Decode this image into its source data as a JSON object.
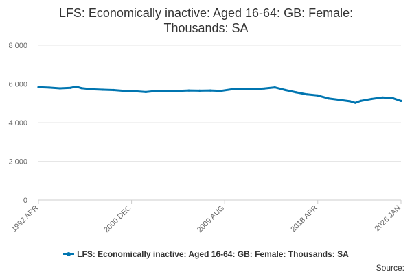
{
  "chart_data": {
    "type": "line",
    "title_lines": [
      "LFS: Economically inactive: Aged 16-64: GB: Female:",
      "Thousands: SA"
    ],
    "xlabel": "",
    "ylabel": "",
    "ylim": [
      0,
      8000
    ],
    "yticks": [
      0,
      2000,
      4000,
      6000,
      8000
    ],
    "ytick_labels": [
      "0",
      "2 000",
      "4 000",
      "6 000",
      "8 000"
    ],
    "xlim": [
      "1992 APR",
      "2026 JAN"
    ],
    "xticks": [
      "1992 APR",
      "2000 DEC",
      "2009 AUG",
      "2018 APR",
      "2026 JAN"
    ],
    "grid": "horizontal",
    "legend_position": "bottom",
    "series": [
      {
        "name": "LFS: Economically inactive: Aged 16-64: GB: Female: Thousands: SA",
        "color": "#0075b0",
        "points": [
          [
            "1992 APR",
            5830
          ],
          [
            "1993 APR",
            5810
          ],
          [
            "1994 APR",
            5770
          ],
          [
            "1995 APR",
            5800
          ],
          [
            "1995 OCT",
            5860
          ],
          [
            "1996 APR",
            5780
          ],
          [
            "1997 APR",
            5720
          ],
          [
            "1998 APR",
            5700
          ],
          [
            "1999 APR",
            5680
          ],
          [
            "2000 APR",
            5640
          ],
          [
            "2001 APR",
            5620
          ],
          [
            "2002 APR",
            5580
          ],
          [
            "2003 APR",
            5640
          ],
          [
            "2004 APR",
            5620
          ],
          [
            "2005 APR",
            5640
          ],
          [
            "2006 APR",
            5660
          ],
          [
            "2007 APR",
            5650
          ],
          [
            "2008 APR",
            5660
          ],
          [
            "2009 APR",
            5640
          ],
          [
            "2010 APR",
            5720
          ],
          [
            "2011 APR",
            5740
          ],
          [
            "2012 APR",
            5720
          ],
          [
            "2013 APR",
            5760
          ],
          [
            "2014 APR",
            5820
          ],
          [
            "2015 APR",
            5680
          ],
          [
            "2016 APR",
            5560
          ],
          [
            "2017 APR",
            5460
          ],
          [
            "2018 APR",
            5400
          ],
          [
            "2019 APR",
            5250
          ],
          [
            "2020 APR",
            5180
          ],
          [
            "2021 APR",
            5100
          ],
          [
            "2021 OCT",
            5020
          ],
          [
            "2022 APR",
            5120
          ],
          [
            "2023 APR",
            5220
          ],
          [
            "2024 APR",
            5300
          ],
          [
            "2025 APR",
            5260
          ],
          [
            "2026 JAN",
            5120
          ]
        ]
      }
    ]
  },
  "source_label": "Source:"
}
